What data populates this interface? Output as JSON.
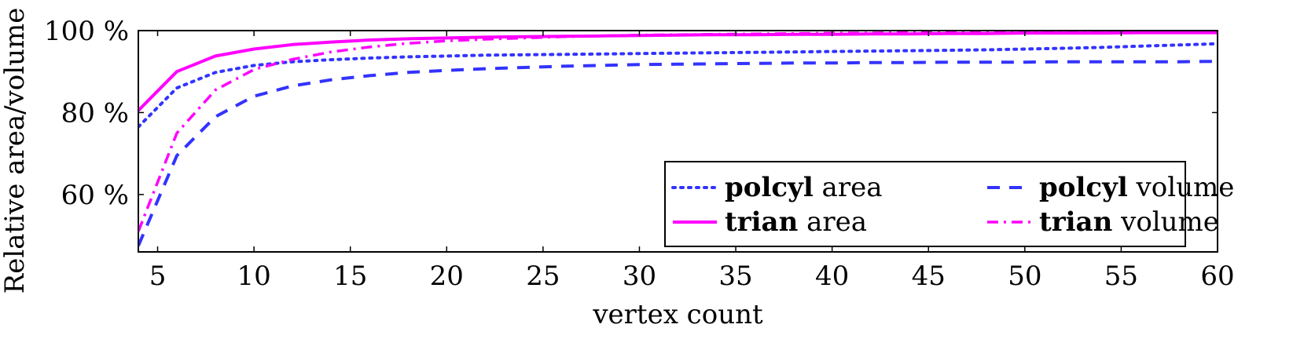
{
  "chart_data": {
    "type": "line",
    "title": "",
    "xlabel": "vertex count",
    "ylabel": "Relative area/volume",
    "xlim": [
      4,
      60
    ],
    "ylim": [
      46,
      100
    ],
    "xticks": [
      5,
      10,
      15,
      20,
      25,
      30,
      35,
      40,
      45,
      50,
      55,
      60
    ],
    "yticks": [
      60,
      80,
      100
    ],
    "ytick_suffix": " %",
    "grid": false,
    "legend": {
      "placement": "bottom-right",
      "columns": 2
    },
    "x": [
      4,
      6,
      8,
      10,
      12,
      14,
      16,
      18,
      20,
      22,
      24,
      26,
      28,
      30,
      32,
      34,
      36,
      38,
      40,
      42,
      44,
      46,
      48,
      50,
      52,
      54,
      56,
      58,
      60
    ],
    "series": [
      {
        "key": "polcyl_area",
        "name_bold": "polcyl",
        "name_rest": " area",
        "color": "#3333ff",
        "style": "dotted",
        "values": [
          76.5,
          86.0,
          89.8,
          91.5,
          92.4,
          92.9,
          93.3,
          93.6,
          93.8,
          94.0,
          94.1,
          94.2,
          94.3,
          94.4,
          94.5,
          94.6,
          94.7,
          94.8,
          94.9,
          95.0,
          95.1,
          95.2,
          95.3,
          95.5,
          95.7,
          95.9,
          96.2,
          96.5,
          96.8
        ]
      },
      {
        "key": "polcyl_volume",
        "name_bold": "polcyl",
        "name_rest": " volume",
        "color": "#3333ff",
        "style": "dashed",
        "values": [
          47.5,
          69.5,
          79.0,
          84.0,
          86.5,
          88.0,
          89.0,
          89.8,
          90.3,
          90.7,
          91.0,
          91.3,
          91.5,
          91.7,
          91.8,
          91.9,
          92.0,
          92.1,
          92.1,
          92.2,
          92.2,
          92.3,
          92.3,
          92.3,
          92.4,
          92.4,
          92.4,
          92.4,
          92.5
        ]
      },
      {
        "key": "trian_area",
        "name_bold": "trian",
        "name_rest": " area",
        "color": "#ff00ff",
        "style": "solid",
        "values": [
          80.5,
          90.0,
          93.8,
          95.5,
          96.6,
          97.2,
          97.7,
          98.0,
          98.2,
          98.4,
          98.5,
          98.6,
          98.7,
          98.8,
          98.9,
          99.0,
          99.0,
          99.1,
          99.1,
          99.2,
          99.2,
          99.3,
          99.3,
          99.4,
          99.4,
          99.4,
          99.5,
          99.5,
          99.5
        ]
      },
      {
        "key": "trian_volume",
        "name_bold": "trian",
        "name_rest": " volume",
        "color": "#ff00ff",
        "style": "dashdot",
        "values": [
          51.0,
          75.0,
          85.5,
          90.5,
          93.0,
          94.8,
          96.0,
          96.9,
          97.5,
          97.9,
          98.2,
          98.5,
          98.7,
          98.9,
          99.0,
          99.1,
          99.2,
          99.3,
          99.4,
          99.4,
          99.5,
          99.5,
          99.6,
          99.6,
          99.6,
          99.7,
          99.7,
          99.7,
          99.8
        ]
      }
    ]
  }
}
